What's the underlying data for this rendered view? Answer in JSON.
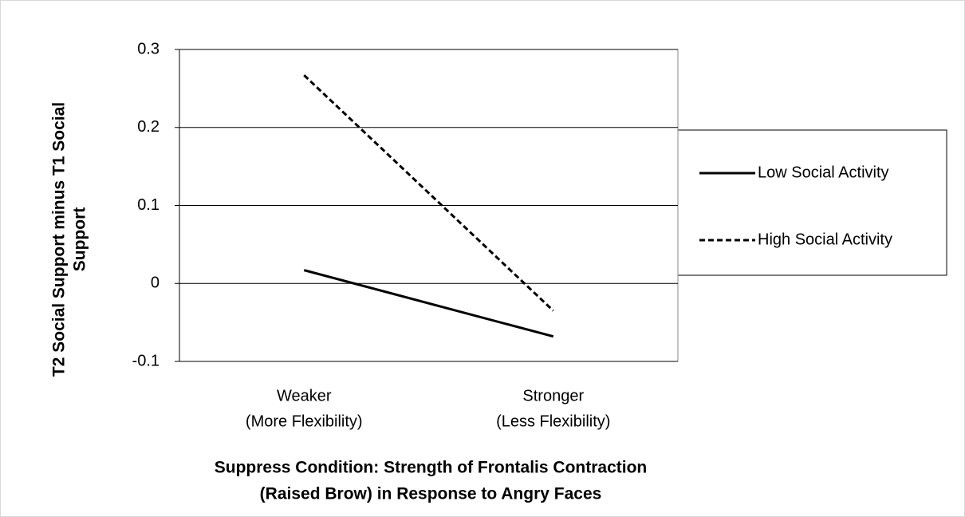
{
  "chart_data": {
    "type": "line",
    "y_label": [
      "T2 Social Support minus T1 Social",
      "Support"
    ],
    "x_label": [
      "Suppress Condition: Strength of Frontalis Contraction",
      "(Raised Brow) in Response to Angry Faces"
    ],
    "categories": [
      [
        "Weaker",
        "(More Flexibility)"
      ],
      [
        "Stronger",
        "(Less Flexibility)"
      ]
    ],
    "series": [
      {
        "name": "Low Social Activity",
        "color": "#000000",
        "dashed": false,
        "values": [
          0.017,
          -0.068
        ]
      },
      {
        "name": "High Social Activity",
        "color": "#000000",
        "dashed": true,
        "values": [
          0.267,
          -0.035
        ]
      }
    ],
    "ylim": [
      -0.1,
      0.3
    ],
    "yticks": [
      -0.1,
      0,
      0.1,
      0.2,
      0.3
    ],
    "grid": true,
    "legend": "right"
  }
}
